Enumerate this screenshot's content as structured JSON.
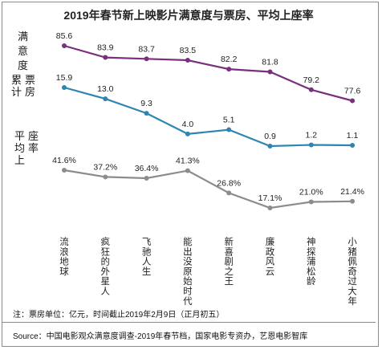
{
  "chart_data": {
    "type": "line",
    "title": "2019年春节新上映影片满意度与票房、平均上座率",
    "categories": [
      "流浪地球",
      "疯狂的外星人",
      "飞驰人生",
      "能出没原始时代",
      "新喜剧之王",
      "廉政风云",
      "神探蒲松龄",
      "小猪佩奇过大年"
    ],
    "series": [
      {
        "name": "满意度",
        "values": [
          85.6,
          83.9,
          83.7,
          83.5,
          82.2,
          81.8,
          79.2,
          77.6
        ],
        "labels": [
          "85.6",
          "83.9",
          "83.7",
          "83.5",
          "82.2",
          "81.8",
          "79.2",
          "77.6"
        ],
        "color": "#7b2f7f"
      },
      {
        "name": "累计票房",
        "values": [
          15.9,
          13.0,
          9.3,
          4.0,
          5.1,
          0.9,
          1.2,
          1.1
        ],
        "labels": [
          "15.9",
          "13.0",
          "9.3",
          "4.0",
          "5.1",
          "0.9",
          "1.2",
          "1.1"
        ],
        "color": "#2e86b0"
      },
      {
        "name": "平均上座率",
        "values": [
          41.6,
          37.2,
          36.4,
          41.3,
          26.8,
          17.1,
          21.0,
          21.4
        ],
        "labels": [
          "41.6%",
          "37.2%",
          "36.4%",
          "41.3%",
          "26.8%",
          "17.1%",
          "21.0%",
          "21.4%"
        ],
        "color": "#8c8c8c"
      }
    ],
    "legend": "left",
    "grid": false
  },
  "note": "注：票房单位：亿元，时间截止2019年2月9日（正月初五）",
  "source": "Source：中国电影观众满意度调查-2019年春节档，国家电影专资办，艺恩电影智库"
}
